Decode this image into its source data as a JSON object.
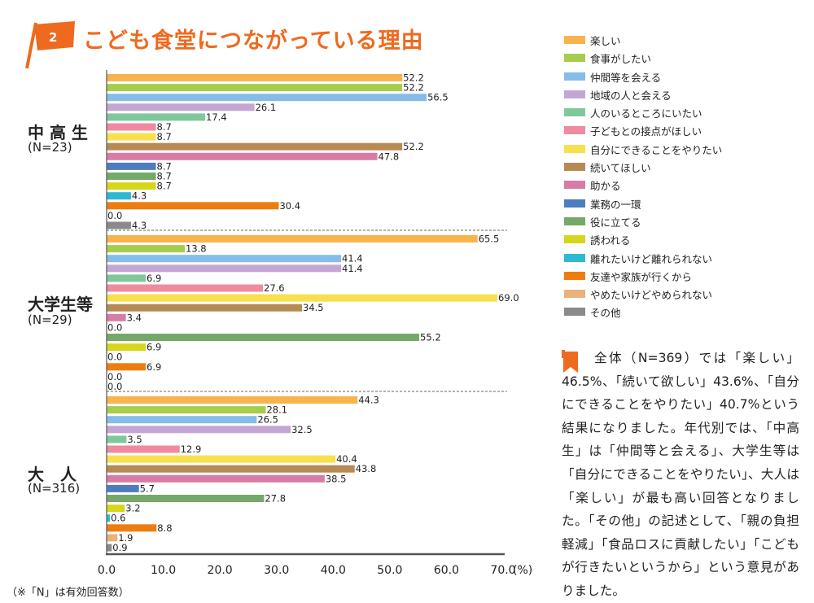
{
  "title": {
    "number": "2",
    "text": "こども食堂につながっている理由"
  },
  "colors": {
    "accent": "#ee6a1f",
    "series": [
      "#f8b34c",
      "#a6cd4b",
      "#86bde8",
      "#c4a6d4",
      "#7fc89c",
      "#ef8aa0",
      "#f8df4e",
      "#b78a54",
      "#d77ca6",
      "#4e7dbf",
      "#76a86a",
      "#d6d61a",
      "#2fb8d2",
      "#ee7d10",
      "#e8b27a",
      "#8a8a8a"
    ]
  },
  "legend": [
    "楽しい",
    "食事がしたい",
    "仲間等を会える",
    "地域の人と会える",
    "人のいるところにいたい",
    "子どもとの接点がほしい",
    "自分にできることをやりたい",
    "続いてほしい",
    "助かる",
    "業務の一環",
    "役に立てる",
    "誘われる",
    "離れたいけど離れられない",
    "友達や家族が行くから",
    "やめたいけどやめられない",
    "その他"
  ],
  "chart_data": {
    "type": "bar",
    "orientation": "horizontal",
    "xlim": [
      0,
      70
    ],
    "ticks": [
      "0.0",
      "10.0",
      "20.0",
      "30.0",
      "40.0",
      "50.0",
      "60.0",
      "70.0"
    ],
    "unit": "(%)",
    "groups": [
      {
        "name": "中 高 生",
        "n": "(N=23)",
        "values": [
          52.2,
          52.2,
          56.5,
          26.1,
          17.4,
          8.7,
          8.7,
          52.2,
          47.8,
          8.7,
          8.7,
          8.7,
          4.3,
          30.4,
          0.0,
          4.3
        ]
      },
      {
        "name": "大学生等",
        "n": "(N=29)",
        "values": [
          65.5,
          13.8,
          41.4,
          41.4,
          6.9,
          27.6,
          69.0,
          34.5,
          3.4,
          0.0,
          55.2,
          6.9,
          0.0,
          6.9,
          0.0,
          0.0
        ]
      },
      {
        "name": "大　人",
        "n": "(N=316)",
        "values": [
          44.3,
          28.1,
          26.5,
          32.5,
          3.5,
          12.9,
          40.4,
          43.8,
          38.5,
          5.7,
          27.8,
          3.2,
          0.6,
          8.8,
          1.9,
          0.9
        ]
      }
    ]
  },
  "note": "全体（N=369）では「楽しい」46.5%、「続いて欲しい」43.6%、「自分にできることをやりたい」40.7%という結果になりました。年代別では、「中高生」は「仲間等と会える」、大学生等は「自分にできることをやりたい」、大人は「楽しい」が最も高い回答となりました。「その他」の記述として、「親の負担軽減」「食品ロスに貢献したい」「こどもが行きたいというから」という意見がありました。",
  "footnote": "（※「N」は有効回答数）"
}
